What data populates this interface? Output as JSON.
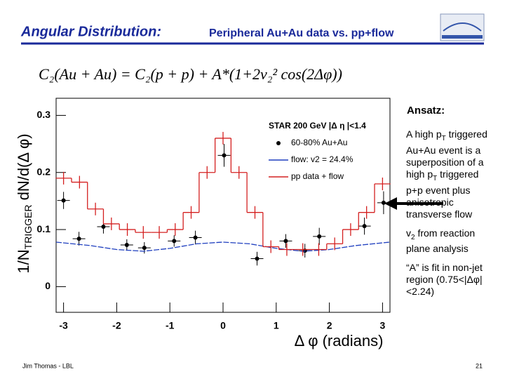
{
  "slide": {
    "title_bold": "Angular Distribution:",
    "title_rest": "Peripheral Au+Au data vs. pp+flow",
    "formula": "C₂(Au + Au) = C₂(p + p) + A*(1+2v₂² cos(2Δφ))",
    "ansatz_heading": "Ansatz:",
    "notes": [
      [
        {
          "text": "A high p"
        },
        {
          "sub": "T"
        },
        {
          "text": " triggered Au+Au event is a superposition of a high p"
        },
        {
          "sub": "T"
        },
        {
          "text": " triggered p+p event plus anisotropic transverse flow"
        }
      ],
      [
        {
          "text": "v"
        },
        {
          "sub": "2"
        },
        {
          "text": " from reaction plane analysis"
        }
      ],
      [
        {
          "text": "“A” is fit in non-jet region (0.75<|Δφ|<2.24)"
        }
      ]
    ],
    "footer_left": "Jim Thomas - LBL",
    "page_number": "21"
  },
  "chart_data": {
    "type": "scatter",
    "xlabel": "Δ φ (radians)",
    "ylabel": {
      "main": "1/N",
      "sub": "TRIGGER",
      "rest": " dN/d(Δ φ)"
    },
    "legend_title": "STAR 200 GeV |Δ η |<1.4",
    "legend": "top-right",
    "xlim": [
      -3.14,
      3.14
    ],
    "ylim": [
      -0.045,
      0.33
    ],
    "xticks": [
      -3,
      -2,
      -1,
      0,
      1,
      2,
      3
    ],
    "yticks": [
      0,
      0.1,
      0.2,
      0.3
    ],
    "grid": false,
    "series": [
      {
        "name": "60-80% Au+Au",
        "color": "#000000",
        "style": "points",
        "x": [
          -3.0,
          -2.71,
          -2.25,
          -1.81,
          -1.48,
          -0.92,
          -0.52,
          0.02,
          0.64,
          1.18,
          1.54,
          1.81,
          2.66,
          3.02
        ],
        "values": [
          0.151,
          0.084,
          0.105,
          0.073,
          0.068,
          0.08,
          0.086,
          0.23,
          0.049,
          0.08,
          0.063,
          0.088,
          0.106,
          0.147
        ],
        "errors": [
          0.015,
          0.012,
          0.012,
          0.01,
          0.01,
          0.01,
          0.012,
          0.02,
          0.012,
          0.012,
          0.012,
          0.015,
          0.015,
          0.02
        ]
      },
      {
        "name": "flow: v2 = 24.4%",
        "color": "#1f3fbf",
        "style": "line",
        "x": [
          -3.14,
          -2.5,
          -2,
          -1.5,
          -1,
          -0.5,
          0,
          0.5,
          1,
          1.5,
          2,
          2.5,
          3.14
        ],
        "values": [
          0.078,
          0.072,
          0.065,
          0.062,
          0.067,
          0.075,
          0.078,
          0.075,
          0.067,
          0.062,
          0.065,
          0.072,
          0.078
        ]
      },
      {
        "name": "pp data + flow",
        "color": "#d42020",
        "style": "step",
        "x": [
          -3.0,
          -2.7,
          -2.4,
          -2.1,
          -1.8,
          -1.5,
          -1.2,
          -0.9,
          -0.6,
          -0.3,
          0.0,
          0.3,
          0.6,
          0.9,
          1.2,
          1.5,
          1.8,
          2.1,
          2.4,
          2.7,
          3.0
        ],
        "values": [
          0.19,
          0.183,
          0.136,
          0.11,
          0.1,
          0.095,
          0.095,
          0.1,
          0.13,
          0.2,
          0.26,
          0.2,
          0.13,
          0.07,
          0.065,
          0.065,
          0.065,
          0.075,
          0.1,
          0.13,
          0.18
        ]
      }
    ]
  }
}
